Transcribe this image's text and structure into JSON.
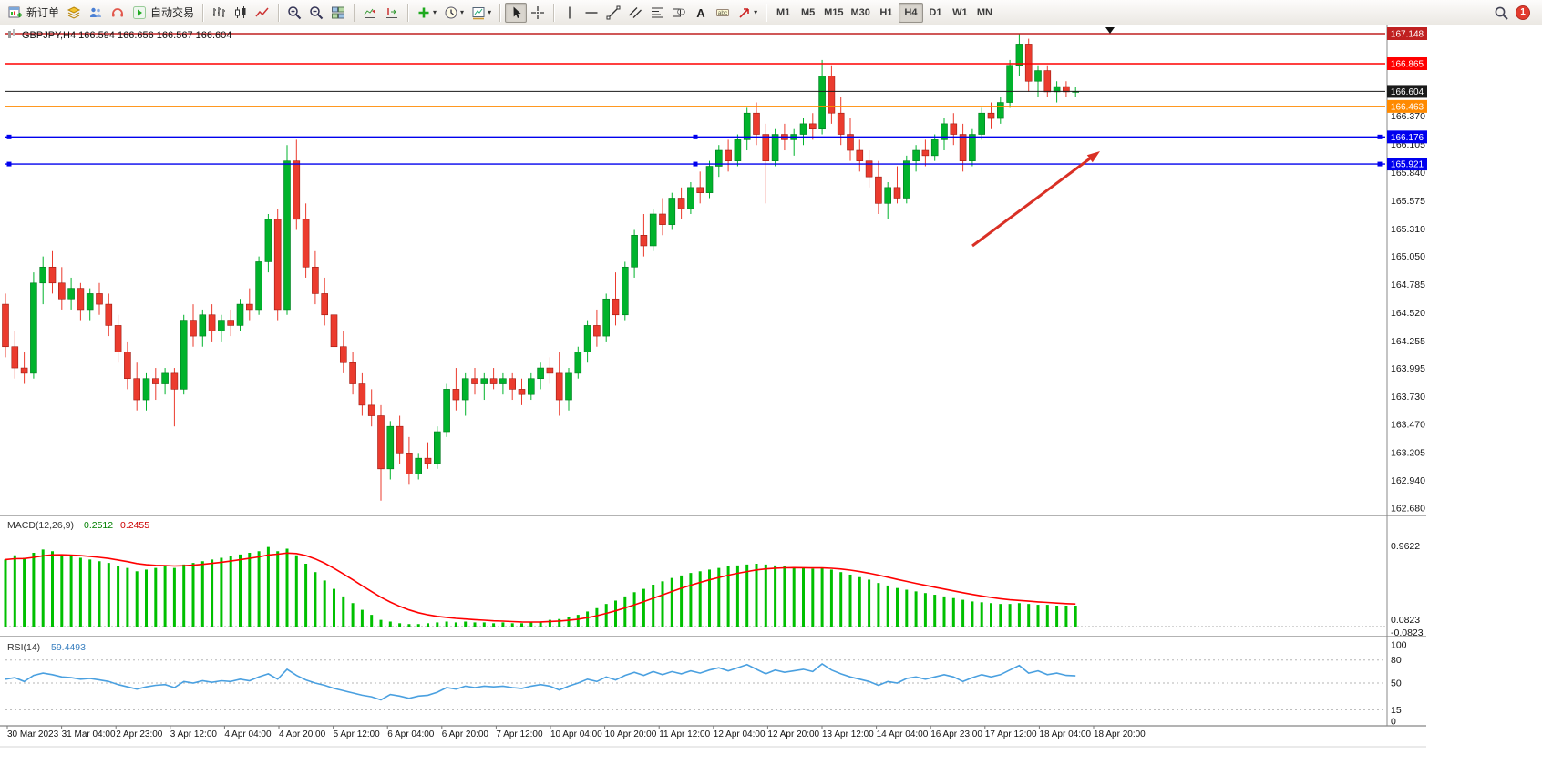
{
  "toolbar": {
    "groups": [
      {
        "name": "trade",
        "items": [
          {
            "name": "new-order-button",
            "icon": "new-order",
            "label": "新订单"
          },
          {
            "name": "layers-button",
            "icon": "layers"
          },
          {
            "name": "community-button",
            "icon": "people"
          },
          {
            "name": "support-button",
            "icon": "headset"
          },
          {
            "name": "auto-trading-button",
            "icon": "play",
            "label": "自动交易"
          }
        ]
      },
      {
        "name": "chart-type",
        "items": [
          {
            "name": "bar-chart-button",
            "icon": "bars"
          },
          {
            "name": "candlestick-chart-button",
            "icon": "candles"
          },
          {
            "name": "line-chart-button",
            "icon": "linechart"
          }
        ]
      },
      {
        "name": "zoom",
        "items": [
          {
            "name": "zoom-in-button",
            "icon": "zoom-in"
          },
          {
            "name": "zoom-out-button",
            "icon": "zoom-out"
          },
          {
            "name": "tile-windows-button",
            "icon": "tile"
          }
        ]
      },
      {
        "name": "scroll",
        "items": [
          {
            "name": "auto-scroll-button",
            "icon": "autoscroll"
          },
          {
            "name": "chart-shift-button",
            "icon": "shift"
          }
        ]
      },
      {
        "name": "insert",
        "items": [
          {
            "name": "indicators-button",
            "icon": "plus",
            "caret": true
          },
          {
            "name": "periods-button",
            "icon": "clock",
            "caret": true
          },
          {
            "name": "templates-button",
            "icon": "template",
            "caret": true
          }
        ]
      },
      {
        "name": "pointer",
        "items": [
          {
            "name": "cursor-button",
            "icon": "cursor",
            "active": true
          },
          {
            "name": "crosshair-button",
            "icon": "crosshair"
          }
        ]
      },
      {
        "name": "objects",
        "items": [
          {
            "name": "vertical-line-button",
            "icon": "vline"
          },
          {
            "name": "horizontal-line-button",
            "icon": "hline"
          },
          {
            "name": "trendline-button",
            "icon": "trend"
          },
          {
            "name": "channel-button",
            "icon": "channel"
          },
          {
            "name": "fibonacci-button",
            "icon": "fibo"
          },
          {
            "name": "shapes-button",
            "icon": "shapes"
          },
          {
            "name": "text-button",
            "icon": "text"
          },
          {
            "name": "label-button",
            "icon": "label"
          },
          {
            "name": "arrows-button",
            "icon": "arrow-obj",
            "caret": true
          }
        ]
      }
    ],
    "timeframes": [
      "M1",
      "M5",
      "M15",
      "M30",
      "H1",
      "H4",
      "D1",
      "W1",
      "MN"
    ],
    "active_timeframe": "H4",
    "notification_count": "1"
  },
  "chart": {
    "symbol_period": "GBPJPY,H4",
    "ohlc_text": "166.594 166.656 166.567 166.604",
    "colors": {
      "up": "#00b32c",
      "down": "#eb3b2e",
      "macd_histogram": "#00c000",
      "macd_signal": "#ff0000",
      "rsi_line": "#4aa0e0",
      "arrow": "#d93025"
    },
    "price_axis_ticks": [
      "166.370",
      "166.105",
      "165.840",
      "165.575",
      "165.310",
      "165.050",
      "164.785",
      "164.520",
      "164.255",
      "163.995",
      "163.730",
      "163.470",
      "163.205",
      "162.940",
      "162.680"
    ],
    "price_lines": [
      {
        "value": 167.148,
        "label": "167.148",
        "color": "#c02020",
        "current": false,
        "handles": false
      },
      {
        "value": 166.865,
        "label": "166.865",
        "color": "#ff0000",
        "current": false,
        "handles": false
      },
      {
        "value": 166.604,
        "label": "166.604",
        "color": "#1a1a1a",
        "current": true,
        "handles": false
      },
      {
        "value": 166.463,
        "label": "166.463",
        "color": "#ff8a00",
        "current": false,
        "handles": false
      },
      {
        "value": 166.176,
        "label": "166.176",
        "color": "#0000ee",
        "current": false,
        "handles": true
      },
      {
        "value": 165.921,
        "label": "165.921",
        "color": "#0000ee",
        "current": false,
        "handles": true
      }
    ],
    "time_axis_labels": [
      "30 Mar 2023",
      "31 Mar 04:00",
      "2 Apr 23:00",
      "3 Apr 12:00",
      "4 Apr 04:00",
      "4 Apr 20:00",
      "5 Apr 12:00",
      "6 Apr 04:00",
      "6 Apr 20:00",
      "7 Apr 12:00",
      "10 Apr 04:00",
      "10 Apr 20:00",
      "11 Apr 12:00",
      "12 Apr 04:00",
      "12 Apr 20:00",
      "13 Apr 12:00",
      "14 Apr 04:00",
      "16 Apr 23:00",
      "17 Apr 12:00",
      "18 Apr 04:00",
      "18 Apr 20:00"
    ]
  },
  "chart_data": [
    {
      "type": "candlestick",
      "symbol": "GBPJPY",
      "timeframe": "H4",
      "title": "GBPJPY,H4 166.594 166.656 166.567 166.604",
      "ylim": [
        162.656,
        167.23
      ],
      "grid": false,
      "ohlc": [
        [
          164.6,
          164.7,
          164.1,
          164.2
        ],
        [
          164.2,
          164.35,
          163.9,
          164.0
        ],
        [
          164.0,
          164.15,
          163.85,
          163.95
        ],
        [
          163.95,
          164.9,
          163.9,
          164.8
        ],
        [
          164.8,
          165.05,
          164.6,
          164.95
        ],
        [
          164.95,
          165.1,
          164.7,
          164.8
        ],
        [
          164.8,
          164.95,
          164.55,
          164.65
        ],
        [
          164.65,
          164.85,
          164.55,
          164.75
        ],
        [
          164.75,
          164.8,
          164.45,
          164.55
        ],
        [
          164.55,
          164.75,
          164.45,
          164.7
        ],
        [
          164.7,
          164.8,
          164.5,
          164.6
        ],
        [
          164.6,
          164.7,
          164.3,
          164.4
        ],
        [
          164.4,
          164.5,
          164.05,
          164.15
        ],
        [
          164.15,
          164.25,
          163.8,
          163.9
        ],
        [
          163.9,
          164.05,
          163.6,
          163.7
        ],
        [
          163.7,
          163.95,
          163.6,
          163.9
        ],
        [
          163.9,
          164.0,
          163.7,
          163.85
        ],
        [
          163.85,
          164.0,
          163.75,
          163.95
        ],
        [
          163.95,
          164.0,
          163.45,
          163.8
        ],
        [
          163.8,
          164.5,
          163.75,
          164.45
        ],
        [
          164.45,
          164.6,
          164.2,
          164.3
        ],
        [
          164.3,
          164.55,
          164.2,
          164.5
        ],
        [
          164.5,
          164.6,
          164.25,
          164.35
        ],
        [
          164.35,
          164.5,
          164.25,
          164.45
        ],
        [
          164.45,
          164.55,
          164.3,
          164.4
        ],
        [
          164.4,
          164.65,
          164.35,
          164.6
        ],
        [
          164.6,
          164.75,
          164.45,
          164.55
        ],
        [
          164.55,
          165.05,
          164.5,
          165.0
        ],
        [
          165.0,
          165.45,
          164.9,
          165.4
        ],
        [
          165.4,
          165.5,
          164.45,
          164.55
        ],
        [
          164.55,
          166.1,
          164.5,
          165.95
        ],
        [
          165.95,
          166.15,
          165.3,
          165.4
        ],
        [
          165.4,
          165.55,
          164.85,
          164.95
        ],
        [
          164.95,
          165.1,
          164.6,
          164.7
        ],
        [
          164.7,
          164.85,
          164.4,
          164.5
        ],
        [
          164.5,
          164.6,
          164.1,
          164.2
        ],
        [
          164.2,
          164.35,
          163.95,
          164.05
        ],
        [
          164.05,
          164.15,
          163.75,
          163.85
        ],
        [
          163.85,
          163.95,
          163.55,
          163.65
        ],
        [
          163.65,
          163.8,
          163.45,
          163.55
        ],
        [
          163.55,
          163.65,
          162.75,
          163.05
        ],
        [
          163.05,
          163.5,
          162.95,
          163.45
        ],
        [
          163.45,
          163.55,
          163.1,
          163.2
        ],
        [
          163.2,
          163.35,
          162.9,
          163.0
        ],
        [
          163.0,
          163.2,
          162.95,
          163.15
        ],
        [
          163.15,
          163.3,
          163.05,
          163.1
        ],
        [
          163.1,
          163.45,
          163.05,
          163.4
        ],
        [
          163.4,
          163.85,
          163.35,
          163.8
        ],
        [
          163.8,
          164.0,
          163.6,
          163.7
        ],
        [
          163.7,
          163.95,
          163.55,
          163.9
        ],
        [
          163.9,
          164.0,
          163.75,
          163.85
        ],
        [
          163.85,
          163.95,
          163.7,
          163.9
        ],
        [
          163.9,
          164.0,
          163.8,
          163.85
        ],
        [
          163.85,
          163.95,
          163.75,
          163.9
        ],
        [
          163.9,
          163.95,
          163.7,
          163.8
        ],
        [
          163.8,
          163.9,
          163.65,
          163.75
        ],
        [
          163.75,
          163.95,
          163.7,
          163.9
        ],
        [
          163.9,
          164.05,
          163.8,
          164.0
        ],
        [
          164.0,
          164.1,
          163.85,
          163.95
        ],
        [
          163.95,
          164.15,
          163.55,
          163.7
        ],
        [
          163.7,
          164.0,
          163.6,
          163.95
        ],
        [
          163.95,
          164.2,
          163.9,
          164.15
        ],
        [
          164.15,
          164.45,
          164.05,
          164.4
        ],
        [
          164.4,
          164.55,
          164.2,
          164.3
        ],
        [
          164.3,
          164.7,
          164.25,
          164.65
        ],
        [
          164.65,
          164.9,
          164.4,
          164.5
        ],
        [
          164.5,
          165.0,
          164.45,
          164.95
        ],
        [
          164.95,
          165.3,
          164.85,
          165.25
        ],
        [
          165.25,
          165.45,
          165.05,
          165.15
        ],
        [
          165.15,
          165.5,
          165.1,
          165.45
        ],
        [
          165.45,
          165.6,
          165.25,
          165.35
        ],
        [
          165.35,
          165.65,
          165.3,
          165.6
        ],
        [
          165.6,
          165.7,
          165.4,
          165.5
        ],
        [
          165.5,
          165.75,
          165.45,
          165.7
        ],
        [
          165.7,
          165.85,
          165.55,
          165.65
        ],
        [
          165.65,
          165.95,
          165.6,
          165.9
        ],
        [
          165.9,
          166.1,
          165.8,
          166.05
        ],
        [
          166.05,
          166.15,
          165.85,
          165.95
        ],
        [
          165.95,
          166.2,
          165.9,
          166.15
        ],
        [
          166.15,
          166.45,
          166.05,
          166.4
        ],
        [
          166.4,
          166.5,
          166.1,
          166.2
        ],
        [
          166.2,
          166.3,
          165.55,
          165.95
        ],
        [
          165.95,
          166.25,
          165.9,
          166.2
        ],
        [
          166.2,
          166.3,
          166.05,
          166.15
        ],
        [
          166.15,
          166.25,
          166.0,
          166.2
        ],
        [
          166.2,
          166.35,
          166.1,
          166.3
        ],
        [
          166.3,
          166.4,
          166.15,
          166.25
        ],
        [
          166.25,
          166.9,
          166.2,
          166.75
        ],
        [
          166.75,
          166.85,
          166.3,
          166.4
        ],
        [
          166.4,
          166.55,
          166.1,
          166.2
        ],
        [
          166.2,
          166.35,
          165.95,
          166.05
        ],
        [
          166.05,
          166.15,
          165.85,
          165.95
        ],
        [
          165.95,
          166.05,
          165.7,
          165.8
        ],
        [
          165.8,
          165.95,
          165.45,
          165.55
        ],
        [
          165.55,
          165.75,
          165.4,
          165.7
        ],
        [
          165.7,
          165.9,
          165.55,
          165.6
        ],
        [
          165.6,
          166.0,
          165.55,
          165.95
        ],
        [
          165.95,
          166.1,
          165.85,
          166.05
        ],
        [
          166.05,
          166.15,
          165.9,
          166.0
        ],
        [
          166.0,
          166.2,
          165.95,
          166.15
        ],
        [
          166.15,
          166.35,
          166.05,
          166.3
        ],
        [
          166.3,
          166.4,
          166.1,
          166.2
        ],
        [
          166.2,
          166.3,
          165.85,
          165.95
        ],
        [
          165.95,
          166.25,
          165.9,
          166.2
        ],
        [
          166.2,
          166.45,
          166.15,
          166.4
        ],
        [
          166.4,
          166.5,
          166.25,
          166.35
        ],
        [
          166.35,
          166.55,
          166.3,
          166.5
        ],
        [
          166.5,
          166.9,
          166.45,
          166.85
        ],
        [
          166.85,
          167.148,
          166.75,
          167.05
        ],
        [
          167.05,
          167.1,
          166.6,
          166.7
        ],
        [
          166.7,
          166.85,
          166.55,
          166.8
        ],
        [
          166.8,
          166.85,
          166.55,
          166.6
        ],
        [
          166.6,
          166.7,
          166.5,
          166.65
        ],
        [
          166.65,
          166.7,
          166.55,
          166.6
        ],
        [
          166.6,
          166.65,
          166.55,
          166.604
        ]
      ]
    },
    {
      "type": "bar",
      "name": "MACD",
      "params": "(12,26,9)",
      "macd_value": "0.2512",
      "signal_value": "0.2455",
      "axis_labels": [
        "0.9622",
        "0.0823",
        "-0.0823"
      ],
      "histogram": [
        0.8,
        0.85,
        0.82,
        0.88,
        0.92,
        0.9,
        0.86,
        0.84,
        0.82,
        0.8,
        0.78,
        0.76,
        0.72,
        0.7,
        0.66,
        0.68,
        0.7,
        0.72,
        0.7,
        0.74,
        0.76,
        0.78,
        0.8,
        0.82,
        0.84,
        0.86,
        0.88,
        0.9,
        0.95,
        0.9,
        0.93,
        0.85,
        0.75,
        0.65,
        0.55,
        0.45,
        0.36,
        0.28,
        0.2,
        0.14,
        0.08,
        0.06,
        0.04,
        0.03,
        0.03,
        0.04,
        0.05,
        0.06,
        0.05,
        0.06,
        0.05,
        0.05,
        0.04,
        0.05,
        0.04,
        0.04,
        0.05,
        0.06,
        0.08,
        0.09,
        0.11,
        0.14,
        0.18,
        0.22,
        0.27,
        0.31,
        0.36,
        0.41,
        0.45,
        0.5,
        0.54,
        0.58,
        0.61,
        0.64,
        0.66,
        0.68,
        0.7,
        0.72,
        0.73,
        0.74,
        0.75,
        0.74,
        0.73,
        0.72,
        0.71,
        0.7,
        0.69,
        0.7,
        0.68,
        0.65,
        0.62,
        0.59,
        0.56,
        0.52,
        0.49,
        0.46,
        0.44,
        0.42,
        0.4,
        0.38,
        0.36,
        0.34,
        0.32,
        0.3,
        0.29,
        0.28,
        0.27,
        0.27,
        0.28,
        0.27,
        0.26,
        0.26,
        0.25,
        0.25,
        0.25
      ]
    },
    {
      "type": "line",
      "name": "RSI",
      "params": "(14)",
      "value": "59.4493",
      "axis_labels": [
        "100",
        "80",
        "50",
        "15",
        "0"
      ],
      "levels": [
        80,
        50,
        15
      ],
      "ylim": [
        0,
        100
      ],
      "values": [
        55,
        57,
        52,
        60,
        63,
        61,
        58,
        57,
        55,
        56,
        54,
        52,
        48,
        45,
        42,
        45,
        47,
        48,
        44,
        52,
        50,
        53,
        51,
        53,
        52,
        55,
        53,
        58,
        62,
        55,
        68,
        60,
        54,
        50,
        47,
        43,
        40,
        37,
        34,
        32,
        28,
        35,
        33,
        30,
        33,
        34,
        38,
        44,
        42,
        46,
        44,
        46,
        45,
        46,
        44,
        43,
        46,
        48,
        46,
        41,
        46,
        50,
        55,
        52,
        58,
        54,
        60,
        64,
        60,
        65,
        61,
        65,
        62,
        66,
        63,
        67,
        70,
        66,
        70,
        74,
        68,
        62,
        67,
        64,
        66,
        68,
        65,
        75,
        67,
        62,
        58,
        55,
        52,
        47,
        52,
        50,
        56,
        58,
        55,
        58,
        61,
        58,
        52,
        57,
        61,
        58,
        61,
        67,
        73,
        63,
        66,
        61,
        63,
        60,
        59.45
      ]
    }
  ]
}
